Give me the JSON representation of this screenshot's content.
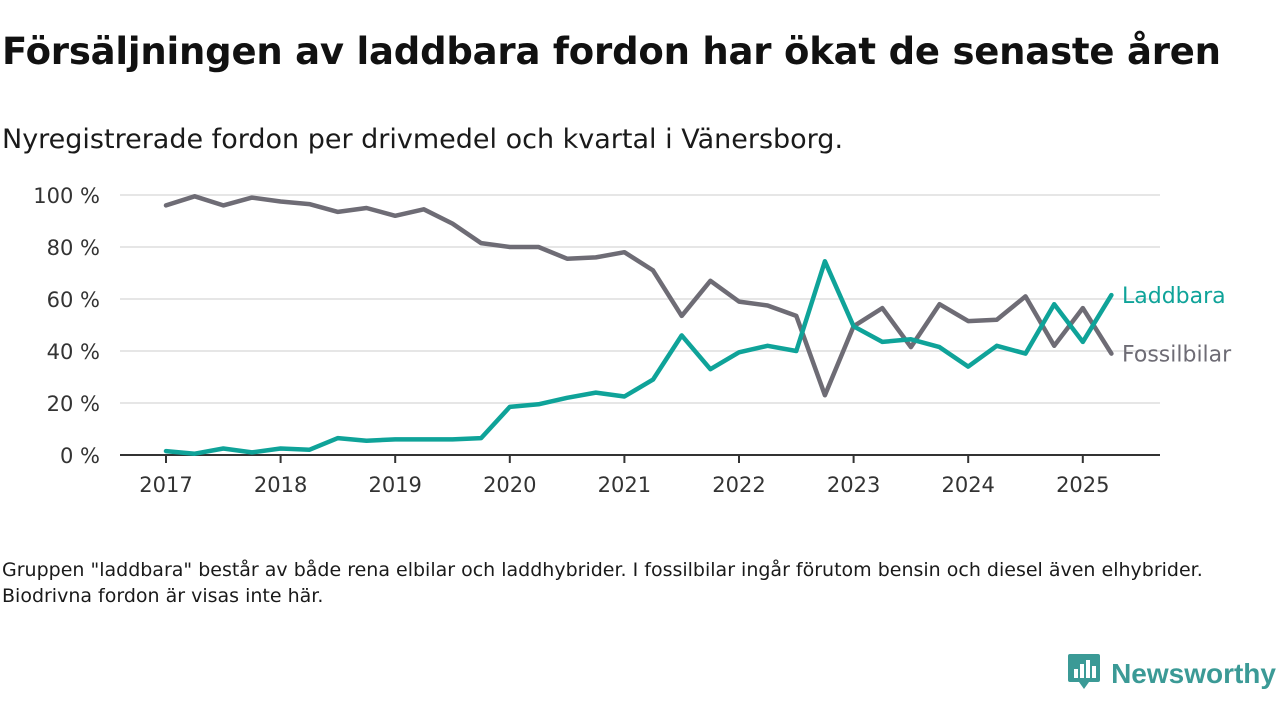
{
  "title": "Försäljningen av laddbara fordon har ökat de senaste åren",
  "subtitle": "Nyregistrerade fordon per drivmedel och kvartal i Vänersborg.",
  "note": "Gruppen \"laddbara\" består av både rena elbilar och laddhybrider. I fossilbilar ingår förutom bensin och diesel även elhybrider. Biodrivna fordon är visas inte här.",
  "brand": {
    "name": "Newsworthy",
    "icon": "bar-chart-speech-bubble-icon"
  },
  "colors": {
    "laddbara": "#0fa399",
    "fossilbilar": "#6e6c75",
    "grid": "#dddddd",
    "axis": "#333333",
    "brand": "#3b9a96"
  },
  "chart_data": {
    "type": "line",
    "ylim": [
      0,
      100
    ],
    "y_ticks": [
      "0 %",
      "20 %",
      "40 %",
      "60 %",
      "80 %",
      "100 %"
    ],
    "y_tick_values": [
      0,
      20,
      40,
      60,
      80,
      100
    ],
    "x_ticks": [
      "2017",
      "2018",
      "2019",
      "2020",
      "2021",
      "2022",
      "2023",
      "2024",
      "2025"
    ],
    "x_tick_values": [
      2017,
      2018,
      2019,
      2020,
      2021,
      2022,
      2023,
      2024,
      2025
    ],
    "grid": true,
    "legend": "right, direct labels at line ends",
    "x": [
      "2017 Q1",
      "2017 Q2",
      "2017 Q3",
      "2017 Q4",
      "2018 Q1",
      "2018 Q2",
      "2018 Q3",
      "2018 Q4",
      "2019 Q1",
      "2019 Q2",
      "2019 Q3",
      "2019 Q4",
      "2020 Q1",
      "2020 Q2",
      "2020 Q3",
      "2020 Q4",
      "2021 Q1",
      "2021 Q2",
      "2021 Q3",
      "2021 Q4",
      "2022 Q1",
      "2022 Q2",
      "2022 Q3",
      "2022 Q4",
      "2023 Q1",
      "2023 Q2",
      "2023 Q3",
      "2023 Q4",
      "2024 Q1",
      "2024 Q2",
      "2024 Q3",
      "2024 Q4",
      "2025 Q1",
      "2025 Q2"
    ],
    "series": [
      {
        "name": "Laddbara",
        "values": [
          1.5,
          0.5,
          2.5,
          1,
          2.5,
          2,
          6.5,
          5.5,
          6,
          6,
          6,
          6.5,
          18.5,
          19.5,
          22,
          24,
          22.5,
          29,
          46,
          33,
          39.5,
          42,
          40,
          74.5,
          49.5,
          43.5,
          44.5,
          41.5,
          34,
          42,
          39,
          58,
          43.5,
          61.5
        ]
      },
      {
        "name": "Fossilbilar",
        "values": [
          96,
          99.5,
          96,
          99,
          97.5,
          96.5,
          93.5,
          95,
          92,
          94.5,
          89,
          81.5,
          80,
          80,
          75.5,
          76,
          78,
          71,
          53.5,
          67,
          59,
          57.5,
          53.5,
          23,
          49.5,
          56.5,
          41.5,
          58,
          51.5,
          52,
          61,
          42,
          56.5,
          39
        ]
      }
    ]
  }
}
